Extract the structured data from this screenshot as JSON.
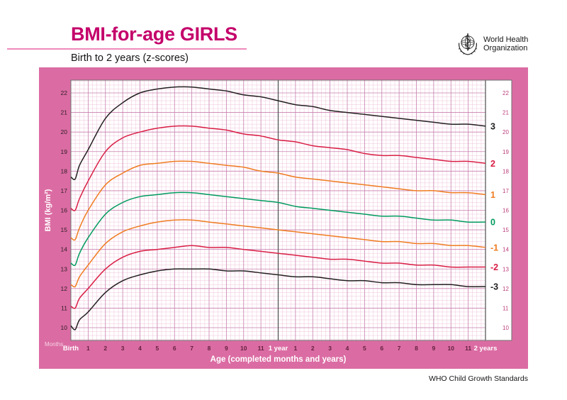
{
  "header": {
    "title": "BMI-for-age GIRLS",
    "subtitle": "Birth to 2 years (z-scores)",
    "logo": {
      "line1": "World Health",
      "line2": "Organization"
    }
  },
  "footer": {
    "credit": "WHO Child Growth Standards"
  },
  "colors": {
    "panel_pink": "#db6ca3",
    "title_magenta": "#c4006a",
    "grid_major": "#c97fae",
    "grid_minor": "#efc3da",
    "year_line": "#4d4d4d",
    "plot_border": "#6f6f6f",
    "tick_left": "#2e1b26",
    "tick_right": "#bb3d7c",
    "month_label": "#63203f",
    "year_label": "#ffffff",
    "unit_label": "#f6d3e5"
  },
  "chart_data": {
    "type": "line",
    "title": "BMI-for-age GIRLS",
    "subtitle": "Birth to 2 years (z-scores)",
    "xlabel": "Age (completed months and years)",
    "ylabel": "BMI (kg/m²)",
    "x_unit_label": "Months",
    "ylim": [
      9.35,
      22.65
    ],
    "xlim_months": [
      0,
      24
    ],
    "grid": true,
    "legend_position": "right-curve-ends",
    "yticks": [
      10,
      11,
      12,
      13,
      14,
      15,
      16,
      17,
      18,
      19,
      20,
      21,
      22
    ],
    "x": [
      0,
      0.25,
      0.5,
      1,
      2,
      3,
      4,
      5,
      6,
      7,
      8,
      9,
      10,
      11,
      12,
      13,
      14,
      15,
      16,
      17,
      18,
      19,
      20,
      21,
      22,
      23,
      24
    ],
    "x_ticks": [
      {
        "m": 0,
        "label": "Birth",
        "kind": "year"
      },
      {
        "m": 1,
        "label": "1",
        "kind": "month"
      },
      {
        "m": 2,
        "label": "2",
        "kind": "month"
      },
      {
        "m": 3,
        "label": "3",
        "kind": "month"
      },
      {
        "m": 4,
        "label": "4",
        "kind": "month"
      },
      {
        "m": 5,
        "label": "5",
        "kind": "month"
      },
      {
        "m": 6,
        "label": "6",
        "kind": "month"
      },
      {
        "m": 7,
        "label": "7",
        "kind": "month"
      },
      {
        "m": 8,
        "label": "8",
        "kind": "month"
      },
      {
        "m": 9,
        "label": "9",
        "kind": "month"
      },
      {
        "m": 10,
        "label": "10",
        "kind": "month"
      },
      {
        "m": 11,
        "label": "11",
        "kind": "month"
      },
      {
        "m": 12,
        "label": "1 year",
        "kind": "year"
      },
      {
        "m": 13,
        "label": "1",
        "kind": "month"
      },
      {
        "m": 14,
        "label": "2",
        "kind": "month"
      },
      {
        "m": 15,
        "label": "3",
        "kind": "month"
      },
      {
        "m": 16,
        "label": "4",
        "kind": "month"
      },
      {
        "m": 17,
        "label": "5",
        "kind": "month"
      },
      {
        "m": 18,
        "label": "6",
        "kind": "month"
      },
      {
        "m": 19,
        "label": "7",
        "kind": "month"
      },
      {
        "m": 20,
        "label": "8",
        "kind": "month"
      },
      {
        "m": 21,
        "label": "9",
        "kind": "month"
      },
      {
        "m": 22,
        "label": "10",
        "kind": "month"
      },
      {
        "m": 23,
        "label": "11",
        "kind": "month"
      },
      {
        "m": 24,
        "label": "2 years",
        "kind": "year"
      }
    ],
    "series": [
      {
        "name": "3",
        "zscore": 3,
        "color": "#231f20",
        "values": [
          17.7,
          17.6,
          18.3,
          19.1,
          20.7,
          21.5,
          22.0,
          22.2,
          22.3,
          22.3,
          22.2,
          22.1,
          21.9,
          21.8,
          21.6,
          21.4,
          21.3,
          21.1,
          21.0,
          20.9,
          20.8,
          20.7,
          20.6,
          20.5,
          20.4,
          20.4,
          20.3
        ]
      },
      {
        "name": "2",
        "zscore": 2,
        "color": "#d91e45",
        "values": [
          16.1,
          16.0,
          16.6,
          17.5,
          19.0,
          19.7,
          20.0,
          20.2,
          20.3,
          20.3,
          20.2,
          20.1,
          19.9,
          19.8,
          19.6,
          19.5,
          19.3,
          19.2,
          19.1,
          18.9,
          18.8,
          18.8,
          18.7,
          18.6,
          18.5,
          18.5,
          18.4
        ]
      },
      {
        "name": "1",
        "zscore": 1,
        "color": "#ef7c21",
        "values": [
          14.6,
          14.5,
          15.1,
          16.0,
          17.3,
          17.9,
          18.3,
          18.4,
          18.5,
          18.5,
          18.4,
          18.3,
          18.2,
          18.0,
          17.9,
          17.7,
          17.6,
          17.5,
          17.4,
          17.3,
          17.2,
          17.1,
          17.0,
          17.0,
          16.9,
          16.9,
          16.8
        ]
      },
      {
        "name": "0",
        "zscore": 0,
        "color": "#009a5d",
        "values": [
          13.3,
          13.2,
          13.8,
          14.6,
          15.8,
          16.4,
          16.7,
          16.8,
          16.9,
          16.9,
          16.8,
          16.7,
          16.6,
          16.5,
          16.4,
          16.2,
          16.1,
          16.0,
          15.9,
          15.8,
          15.7,
          15.7,
          15.6,
          15.5,
          15.5,
          15.4,
          15.4
        ]
      },
      {
        "name": "-1",
        "zscore": -1,
        "color": "#ef7c21",
        "values": [
          12.2,
          12.1,
          12.6,
          13.2,
          14.3,
          14.9,
          15.2,
          15.4,
          15.5,
          15.5,
          15.4,
          15.3,
          15.2,
          15.1,
          15.0,
          14.9,
          14.8,
          14.7,
          14.6,
          14.5,
          14.4,
          14.4,
          14.3,
          14.3,
          14.2,
          14.2,
          14.1
        ]
      },
      {
        "name": "-2",
        "zscore": -2,
        "color": "#d91e45",
        "values": [
          11.1,
          11.0,
          11.5,
          12.0,
          13.0,
          13.6,
          13.9,
          14.0,
          14.1,
          14.2,
          14.1,
          14.1,
          14.0,
          13.9,
          13.8,
          13.7,
          13.6,
          13.5,
          13.5,
          13.4,
          13.3,
          13.3,
          13.2,
          13.2,
          13.1,
          13.1,
          13.1
        ]
      },
      {
        "name": "-3",
        "zscore": -3,
        "color": "#231f20",
        "values": [
          10.1,
          9.9,
          10.4,
          10.8,
          11.8,
          12.4,
          12.7,
          12.9,
          13.0,
          13.0,
          13.0,
          12.9,
          12.9,
          12.8,
          12.7,
          12.6,
          12.6,
          12.5,
          12.4,
          12.4,
          12.3,
          12.3,
          12.2,
          12.2,
          12.2,
          12.1,
          12.1
        ]
      }
    ]
  }
}
